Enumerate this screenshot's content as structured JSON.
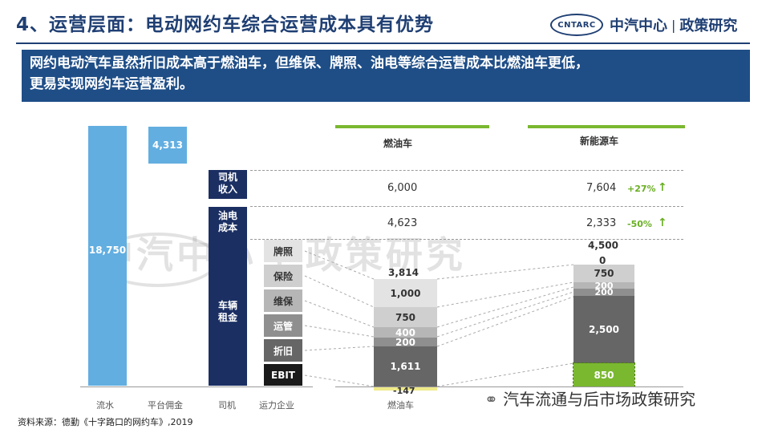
{
  "header": {
    "title": "4、运营层面：电动网约车综合运营成本具有优势",
    "logo_badge": "CNTARC",
    "logo_org": "中汽中心",
    "logo_sep": "|",
    "logo_dept": "政策研究"
  },
  "banner": {
    "line1": "网约电动汽车虽然折旧成本高于燃油车，但维保、牌照、油电等综合运营成本比燃油车更低，",
    "line2": "更易实现网约车运营盈利。"
  },
  "waterfall": {
    "flow_value": "18,750",
    "platform_value": "4,313",
    "driver_income_label": "司机\n收入",
    "fuel_cost_label": "油电\n成本",
    "vehicle_rent_label": "车辆\n租金",
    "company_items": [
      "牌照",
      "保险",
      "维保",
      "运管",
      "折旧",
      "EBIT"
    ],
    "x_labels": [
      "流水",
      "平台佣金",
      "司机",
      "运力企业"
    ]
  },
  "comparison": {
    "col_fuel": "燃油车",
    "col_ev": "新能源车",
    "rows": [
      {
        "fuel": "6,000",
        "ev": "7,604",
        "pct": "+27%",
        "arrow": "↑"
      },
      {
        "fuel": "4,623",
        "ev": "2,333",
        "pct": "-50%",
        "arrow": "↑"
      }
    ],
    "fuel_stack": {
      "total": "3,814",
      "segments": [
        "1,000",
        "750",
        "400",
        "200",
        "1,611",
        "-147"
      ],
      "xlabel": "燃油车"
    },
    "ev_stack": {
      "total": "4,500",
      "segments": [
        "0",
        "750",
        "200",
        "200",
        "2,500",
        "850"
      ]
    }
  },
  "watermark": "中汽中心 | 政策研究",
  "wechat": "汽车流通与后市场政策研究",
  "footnote": "资料来源：德勤《十字路口的网约车》,2019"
}
